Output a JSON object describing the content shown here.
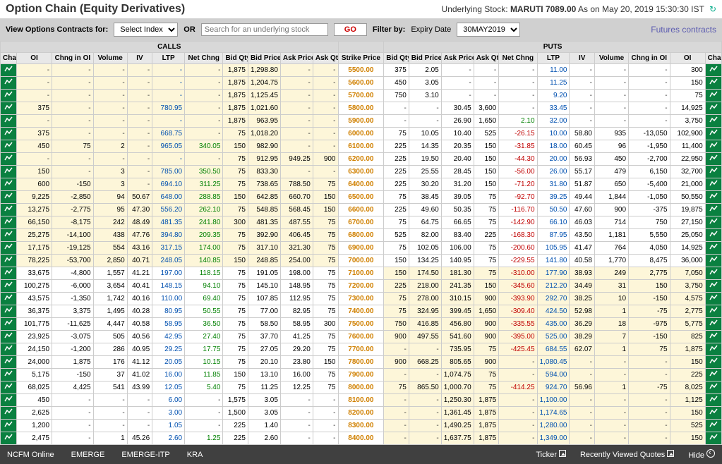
{
  "page_title": "Option Chain (Equity Derivatives)",
  "underlying_label": "Underlying Stock:",
  "underlying_symbol": "MARUTI",
  "underlying_price": "7089.00",
  "as_on": "As on May 20, 2019 15:30:30 IST",
  "toolbar": {
    "view_label": "View Options Contracts for:",
    "select_index": "Select Index",
    "or": "OR",
    "search_placeholder": "Search for an underlying stock",
    "go": "GO",
    "filter_label": "Filter by:",
    "expiry_label": "Expiry Date",
    "expiry_value": "30MAY2019",
    "futures_link": "Futures contracts"
  },
  "sections": {
    "calls": "CALLS",
    "puts": "PUTS"
  },
  "cols": {
    "chart": "Chart",
    "oi": "OI",
    "chgoi": "Chng in OI",
    "vol": "Volume",
    "iv": "IV",
    "ltp": "LTP",
    "netchg": "Net Chng",
    "bidqty": "Bid Qty",
    "bidprice": "Bid Price",
    "askprice": "Ask Price",
    "askqty": "Ask Qty",
    "strike": "Strike Price"
  },
  "rows": [
    {
      "c": {
        "oi": "-",
        "chgoi": "-",
        "vol": "-",
        "iv": "-",
        "ltp": "-",
        "nc": "-",
        "bq": "1,875",
        "bp": "1,298.80",
        "ap": "-",
        "aq": "-",
        "itm": true
      },
      "strike": "5500.00",
      "p": {
        "bq": "375",
        "bp": "2.05",
        "ap": "-",
        "aq": "-",
        "nc": "-",
        "ltp": "11.00",
        "iv": "-",
        "vol": "-",
        "chgoi": "-",
        "oi": "300"
      }
    },
    {
      "c": {
        "oi": "-",
        "chgoi": "-",
        "vol": "-",
        "iv": "-",
        "ltp": "-",
        "nc": "-",
        "bq": "1,875",
        "bp": "1,204.75",
        "ap": "-",
        "aq": "-",
        "itm": true
      },
      "strike": "5600.00",
      "p": {
        "bq": "450",
        "bp": "3.05",
        "ap": "-",
        "aq": "-",
        "nc": "-",
        "ltp": "11.25",
        "iv": "-",
        "vol": "-",
        "chgoi": "-",
        "oi": "150"
      }
    },
    {
      "c": {
        "oi": "-",
        "chgoi": "-",
        "vol": "-",
        "iv": "-",
        "ltp": "-",
        "nc": "-",
        "bq": "1,875",
        "bp": "1,125.45",
        "ap": "-",
        "aq": "-",
        "itm": true
      },
      "strike": "5700.00",
      "p": {
        "bq": "750",
        "bp": "3.10",
        "ap": "-",
        "aq": "-",
        "nc": "-",
        "ltp": "9.20",
        "iv": "-",
        "vol": "-",
        "chgoi": "-",
        "oi": "75"
      }
    },
    {
      "c": {
        "oi": "375",
        "chgoi": "-",
        "vol": "-",
        "iv": "-",
        "ltp": "780.95",
        "nc": "-",
        "bq": "1,875",
        "bp": "1,021.60",
        "ap": "-",
        "aq": "-",
        "itm": true
      },
      "strike": "5800.00",
      "p": {
        "bq": "-",
        "bp": "-",
        "ap": "30.45",
        "aq": "3,600",
        "nc": "-",
        "ltp": "33.45",
        "iv": "-",
        "vol": "-",
        "chgoi": "-",
        "oi": "14,925"
      }
    },
    {
      "c": {
        "oi": "-",
        "chgoi": "-",
        "vol": "-",
        "iv": "-",
        "ltp": "-",
        "nc": "-",
        "bq": "1,875",
        "bp": "963.95",
        "ap": "-",
        "aq": "-",
        "itm": true
      },
      "strike": "5900.00",
      "p": {
        "bq": "-",
        "bp": "-",
        "ap": "26.90",
        "aq": "1,650",
        "nc": "2.10",
        "ltp": "32.00",
        "iv": "-",
        "vol": "-",
        "chgoi": "-",
        "oi": "3,750"
      }
    },
    {
      "c": {
        "oi": "375",
        "chgoi": "-",
        "vol": "-",
        "iv": "-",
        "ltp": "668.75",
        "nc": "-",
        "bq": "75",
        "bp": "1,018.20",
        "ap": "-",
        "aq": "-",
        "itm": true
      },
      "strike": "6000.00",
      "p": {
        "bq": "75",
        "bp": "10.05",
        "ap": "10.40",
        "aq": "525",
        "nc": "-26.15",
        "ltp": "10.00",
        "iv": "58.80",
        "vol": "935",
        "chgoi": "-13,050",
        "oi": "102,900"
      }
    },
    {
      "c": {
        "oi": "450",
        "chgoi": "75",
        "vol": "2",
        "iv": "-",
        "ltp": "965.05",
        "nc": "340.05",
        "bq": "150",
        "bp": "982.90",
        "ap": "-",
        "aq": "-",
        "itm": true
      },
      "strike": "6100.00",
      "p": {
        "bq": "225",
        "bp": "14.35",
        "ap": "20.35",
        "aq": "150",
        "nc": "-31.85",
        "ltp": "18.00",
        "iv": "60.45",
        "vol": "96",
        "chgoi": "-1,950",
        "oi": "11,400"
      }
    },
    {
      "c": {
        "oi": "-",
        "chgoi": "-",
        "vol": "-",
        "iv": "-",
        "ltp": "-",
        "nc": "-",
        "bq": "75",
        "bp": "912.95",
        "ap": "949.25",
        "aq": "900",
        "itm": true
      },
      "strike": "6200.00",
      "p": {
        "bq": "225",
        "bp": "19.50",
        "ap": "20.40",
        "aq": "150",
        "nc": "-44.30",
        "ltp": "20.00",
        "iv": "56.93",
        "vol": "450",
        "chgoi": "-2,700",
        "oi": "22,950"
      }
    },
    {
      "c": {
        "oi": "150",
        "chgoi": "-",
        "vol": "3",
        "iv": "-",
        "ltp": "785.00",
        "nc": "350.50",
        "bq": "75",
        "bp": "833.30",
        "ap": "-",
        "aq": "-",
        "itm": true
      },
      "strike": "6300.00",
      "p": {
        "bq": "225",
        "bp": "25.55",
        "ap": "28.45",
        "aq": "150",
        "nc": "-56.00",
        "ltp": "26.00",
        "iv": "55.17",
        "vol": "479",
        "chgoi": "6,150",
        "oi": "32,700"
      }
    },
    {
      "c": {
        "oi": "600",
        "chgoi": "-150",
        "vol": "3",
        "iv": "-",
        "ltp": "694.10",
        "nc": "311.25",
        "bq": "75",
        "bp": "738.65",
        "ap": "788.50",
        "aq": "75",
        "itm": true
      },
      "strike": "6400.00",
      "p": {
        "bq": "225",
        "bp": "30.20",
        "ap": "31.20",
        "aq": "150",
        "nc": "-71.20",
        "ltp": "31.80",
        "iv": "51.87",
        "vol": "650",
        "chgoi": "-5,400",
        "oi": "21,000"
      }
    },
    {
      "c": {
        "oi": "9,225",
        "chgoi": "-2,850",
        "vol": "94",
        "iv": "50.67",
        "ltp": "648.00",
        "nc": "288.85",
        "bq": "150",
        "bp": "642.85",
        "ap": "660.70",
        "aq": "150",
        "itm": true
      },
      "strike": "6500.00",
      "p": {
        "bq": "75",
        "bp": "38.45",
        "ap": "39.05",
        "aq": "75",
        "nc": "-92.70",
        "ltp": "39.25",
        "iv": "49.44",
        "vol": "1,844",
        "chgoi": "-1,050",
        "oi": "50,550"
      }
    },
    {
      "c": {
        "oi": "13,275",
        "chgoi": "-2,775",
        "vol": "95",
        "iv": "47.30",
        "ltp": "556.20",
        "nc": "262.10",
        "bq": "75",
        "bp": "548.85",
        "ap": "568.45",
        "aq": "150",
        "itm": true
      },
      "strike": "6600.00",
      "p": {
        "bq": "225",
        "bp": "49.60",
        "ap": "50.35",
        "aq": "75",
        "nc": "-116.70",
        "ltp": "50.50",
        "iv": "47.60",
        "vol": "900",
        "chgoi": "-375",
        "oi": "19,875"
      }
    },
    {
      "c": {
        "oi": "66,150",
        "chgoi": "-8,175",
        "vol": "242",
        "iv": "48.49",
        "ltp": "481.35",
        "nc": "241.80",
        "bq": "300",
        "bp": "481.35",
        "ap": "487.55",
        "aq": "75",
        "itm": true
      },
      "strike": "6700.00",
      "p": {
        "bq": "75",
        "bp": "64.75",
        "ap": "66.65",
        "aq": "75",
        "nc": "-142.90",
        "ltp": "66.10",
        "iv": "46.03",
        "vol": "714",
        "chgoi": "750",
        "oi": "27,150"
      }
    },
    {
      "c": {
        "oi": "25,275",
        "chgoi": "-14,100",
        "vol": "438",
        "iv": "47.76",
        "ltp": "394.80",
        "nc": "209.35",
        "bq": "75",
        "bp": "392.90",
        "ap": "406.45",
        "aq": "75",
        "itm": true
      },
      "strike": "6800.00",
      "p": {
        "bq": "525",
        "bp": "82.00",
        "ap": "83.40",
        "aq": "225",
        "nc": "-168.30",
        "ltp": "87.95",
        "iv": "43.50",
        "vol": "1,181",
        "chgoi": "5,550",
        "oi": "25,050"
      }
    },
    {
      "c": {
        "oi": "17,175",
        "chgoi": "-19,125",
        "vol": "554",
        "iv": "43.16",
        "ltp": "317.15",
        "nc": "174.00",
        "bq": "75",
        "bp": "317.10",
        "ap": "321.30",
        "aq": "75",
        "itm": true
      },
      "strike": "6900.00",
      "p": {
        "bq": "75",
        "bp": "102.05",
        "ap": "106.00",
        "aq": "75",
        "nc": "-200.60",
        "ltp": "105.95",
        "iv": "41.47",
        "vol": "764",
        "chgoi": "4,050",
        "oi": "14,925"
      }
    },
    {
      "c": {
        "oi": "78,225",
        "chgoi": "-53,700",
        "vol": "2,850",
        "iv": "40.71",
        "ltp": "248.05",
        "nc": "140.85",
        "bq": "150",
        "bp": "248.85",
        "ap": "254.00",
        "aq": "75",
        "itm": true
      },
      "strike": "7000.00",
      "p": {
        "bq": "150",
        "bp": "134.25",
        "ap": "140.95",
        "aq": "75",
        "nc": "-229.55",
        "ltp": "141.80",
        "iv": "40.58",
        "vol": "1,770",
        "chgoi": "8,475",
        "oi": "36,000"
      }
    },
    {
      "c": {
        "oi": "33,675",
        "chgoi": "-4,800",
        "vol": "1,557",
        "iv": "41.21",
        "ltp": "197.00",
        "nc": "118.15",
        "bq": "75",
        "bp": "191.05",
        "ap": "198.00",
        "aq": "75"
      },
      "strike": "7100.00",
      "p": {
        "bq": "150",
        "bp": "174.50",
        "ap": "181.30",
        "aq": "75",
        "nc": "-310.00",
        "ltp": "177.90",
        "iv": "38.93",
        "vol": "249",
        "chgoi": "2,775",
        "oi": "7,050",
        "itm": true
      }
    },
    {
      "c": {
        "oi": "100,275",
        "chgoi": "-6,000",
        "vol": "3,654",
        "iv": "40.41",
        "ltp": "148.15",
        "nc": "94.10",
        "bq": "75",
        "bp": "145.10",
        "ap": "148.95",
        "aq": "75"
      },
      "strike": "7200.00",
      "p": {
        "bq": "225",
        "bp": "218.00",
        "ap": "241.35",
        "aq": "150",
        "nc": "-345.60",
        "ltp": "212.20",
        "iv": "34.49",
        "vol": "31",
        "chgoi": "150",
        "oi": "3,750",
        "itm": true
      }
    },
    {
      "c": {
        "oi": "43,575",
        "chgoi": "-1,350",
        "vol": "1,742",
        "iv": "40.16",
        "ltp": "110.00",
        "nc": "69.40",
        "bq": "75",
        "bp": "107.85",
        "ap": "112.95",
        "aq": "75"
      },
      "strike": "7300.00",
      "p": {
        "bq": "75",
        "bp": "278.00",
        "ap": "310.15",
        "aq": "900",
        "nc": "-393.90",
        "ltp": "292.70",
        "iv": "38.25",
        "vol": "10",
        "chgoi": "-150",
        "oi": "4,575",
        "itm": true
      }
    },
    {
      "c": {
        "oi": "36,375",
        "chgoi": "3,375",
        "vol": "1,495",
        "iv": "40.28",
        "ltp": "80.95",
        "nc": "50.55",
        "bq": "75",
        "bp": "77.00",
        "ap": "82.95",
        "aq": "75"
      },
      "strike": "7400.00",
      "p": {
        "bq": "75",
        "bp": "324.95",
        "ap": "399.45",
        "aq": "1,650",
        "nc": "-309.40",
        "ltp": "424.50",
        "iv": "52.98",
        "vol": "1",
        "chgoi": "-75",
        "oi": "2,775",
        "itm": true
      }
    },
    {
      "c": {
        "oi": "101,775",
        "chgoi": "-11,625",
        "vol": "4,447",
        "iv": "40.58",
        "ltp": "58.95",
        "nc": "36.50",
        "bq": "75",
        "bp": "58.50",
        "ap": "58.95",
        "aq": "300"
      },
      "strike": "7500.00",
      "p": {
        "bq": "750",
        "bp": "416.85",
        "ap": "456.80",
        "aq": "900",
        "nc": "-335.55",
        "ltp": "435.00",
        "iv": "36.29",
        "vol": "18",
        "chgoi": "-975",
        "oi": "5,775",
        "itm": true
      }
    },
    {
      "c": {
        "oi": "23,925",
        "chgoi": "-3,075",
        "vol": "505",
        "iv": "40.56",
        "ltp": "42.95",
        "nc": "27.40",
        "bq": "75",
        "bp": "37.70",
        "ap": "41.25",
        "aq": "75"
      },
      "strike": "7600.00",
      "p": {
        "bq": "900",
        "bp": "497.55",
        "ap": "541.60",
        "aq": "900",
        "nc": "-395.00",
        "ltp": "525.00",
        "iv": "38.29",
        "vol": "7",
        "chgoi": "-150",
        "oi": "825",
        "itm": true
      }
    },
    {
      "c": {
        "oi": "24,150",
        "chgoi": "-1,200",
        "vol": "286",
        "iv": "40.95",
        "ltp": "29.25",
        "nc": "17.75",
        "bq": "75",
        "bp": "27.05",
        "ap": "29.20",
        "aq": "75"
      },
      "strike": "7700.00",
      "p": {
        "bq": "-",
        "bp": "-",
        "ap": "735.95",
        "aq": "75",
        "nc": "-425.45",
        "ltp": "684.55",
        "iv": "62.07",
        "vol": "1",
        "chgoi": "75",
        "oi": "1,875",
        "itm": true
      }
    },
    {
      "c": {
        "oi": "24,000",
        "chgoi": "1,875",
        "vol": "176",
        "iv": "41.12",
        "ltp": "20.05",
        "nc": "10.15",
        "bq": "75",
        "bp": "20.10",
        "ap": "23.80",
        "aq": "150"
      },
      "strike": "7800.00",
      "p": {
        "bq": "900",
        "bp": "668.25",
        "ap": "805.65",
        "aq": "900",
        "nc": "-",
        "ltp": "1,080.45",
        "iv": "-",
        "vol": "-",
        "chgoi": "-",
        "oi": "150",
        "itm": true
      }
    },
    {
      "c": {
        "oi": "5,175",
        "chgoi": "-150",
        "vol": "37",
        "iv": "41.02",
        "ltp": "16.00",
        "nc": "11.85",
        "bq": "150",
        "bp": "13.10",
        "ap": "16.00",
        "aq": "75"
      },
      "strike": "7900.00",
      "p": {
        "bq": "-",
        "bp": "-",
        "ap": "1,074.75",
        "aq": "75",
        "nc": "-",
        "ltp": "594.00",
        "iv": "-",
        "vol": "-",
        "chgoi": "-",
        "oi": "225",
        "itm": true
      }
    },
    {
      "c": {
        "oi": "68,025",
        "chgoi": "4,425",
        "vol": "541",
        "iv": "43.99",
        "ltp": "12.05",
        "nc": "5.40",
        "bq": "75",
        "bp": "11.25",
        "ap": "12.25",
        "aq": "75"
      },
      "strike": "8000.00",
      "p": {
        "bq": "75",
        "bp": "865.50",
        "ap": "1,000.70",
        "aq": "75",
        "nc": "-414.25",
        "ltp": "924.70",
        "iv": "56.96",
        "vol": "1",
        "chgoi": "-75",
        "oi": "8,025",
        "itm": true
      }
    },
    {
      "c": {
        "oi": "450",
        "chgoi": "-",
        "vol": "-",
        "iv": "-",
        "ltp": "6.00",
        "nc": "-",
        "bq": "1,575",
        "bp": "3.05",
        "ap": "-",
        "aq": "-"
      },
      "strike": "8100.00",
      "p": {
        "bq": "-",
        "bp": "-",
        "ap": "1,250.30",
        "aq": "1,875",
        "nc": "-",
        "ltp": "1,100.00",
        "iv": "-",
        "vol": "-",
        "chgoi": "-",
        "oi": "1,125",
        "itm": true
      }
    },
    {
      "c": {
        "oi": "2,625",
        "chgoi": "-",
        "vol": "-",
        "iv": "-",
        "ltp": "3.00",
        "nc": "-",
        "bq": "1,500",
        "bp": "3.05",
        "ap": "-",
        "aq": "-"
      },
      "strike": "8200.00",
      "p": {
        "bq": "-",
        "bp": "-",
        "ap": "1,361.45",
        "aq": "1,875",
        "nc": "-",
        "ltp": "1,174.65",
        "iv": "-",
        "vol": "-",
        "chgoi": "-",
        "oi": "150",
        "itm": true
      }
    },
    {
      "c": {
        "oi": "1,200",
        "chgoi": "-",
        "vol": "-",
        "iv": "-",
        "ltp": "1.05",
        "nc": "-",
        "bq": "225",
        "bp": "1.40",
        "ap": "-",
        "aq": "-"
      },
      "strike": "8300.00",
      "p": {
        "bq": "-",
        "bp": "-",
        "ap": "1,490.25",
        "aq": "1,875",
        "nc": "-",
        "ltp": "1,280.00",
        "iv": "-",
        "vol": "-",
        "chgoi": "-",
        "oi": "525",
        "itm": true
      }
    },
    {
      "c": {
        "oi": "2,475",
        "chgoi": "-",
        "vol": "1",
        "iv": "45.26",
        "ltp": "2.60",
        "nc": "1.25",
        "bq": "225",
        "bp": "2.60",
        "ap": "-",
        "aq": "-"
      },
      "strike": "8400.00",
      "p": {
        "bq": "-",
        "bp": "-",
        "ap": "1,637.75",
        "aq": "1,875",
        "nc": "-",
        "ltp": "1,349.00",
        "iv": "-",
        "vol": "-",
        "chgoi": "-",
        "oi": "150",
        "itm": true
      }
    }
  ],
  "footer": {
    "ncfm": "NCFM Online",
    "emerge": "EMERGE",
    "emerge_itp": "EMERGE-ITP",
    "kra": "KRA",
    "ticker": "Ticker",
    "recent": "Recently Viewed Quotes",
    "hide": "Hide"
  }
}
